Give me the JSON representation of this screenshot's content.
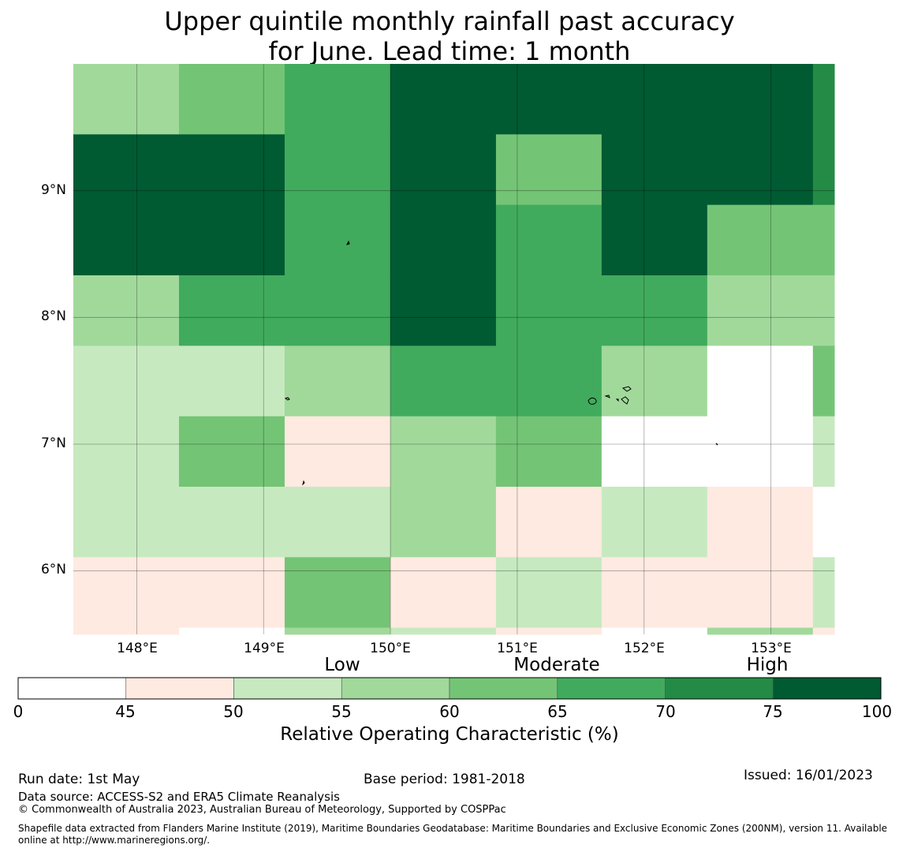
{
  "title": {
    "line1": "Upper quintile monthly rainfall past accuracy",
    "line2": "for June. Lead time: 1 month"
  },
  "map": {
    "lon_range": [
      147.5,
      153.5
    ],
    "lat_range": [
      5.5,
      10.0
    ],
    "grid_lon_step": 0.833,
    "grid_lat_step": 0.556,
    "lat_ticks": [
      {
        "value": 9,
        "label": "9°N"
      },
      {
        "value": 8,
        "label": "8°N"
      },
      {
        "value": 7,
        "label": "7°N"
      },
      {
        "value": 6,
        "label": "6°N"
      }
    ],
    "lon_ticks": [
      {
        "value": 148,
        "label": "148°E"
      },
      {
        "value": 149,
        "label": "149°E"
      },
      {
        "value": 150,
        "label": "150°E"
      },
      {
        "value": 151,
        "label": "151°E"
      },
      {
        "value": 152,
        "label": "152°E"
      },
      {
        "value": 153,
        "label": "153°E"
      }
    ],
    "cells": [
      [
        3,
        4,
        5,
        7,
        7,
        7,
        7,
        6
      ],
      [
        7,
        7,
        5,
        7,
        4,
        7,
        7,
        6
      ],
      [
        7,
        7,
        5,
        7,
        5,
        7,
        4,
        4
      ],
      [
        3,
        5,
        5,
        7,
        5,
        5,
        3,
        3
      ],
      [
        2,
        2,
        3,
        5,
        5,
        3,
        0,
        4
      ],
      [
        2,
        4,
        1,
        3,
        4,
        0,
        0,
        2
      ],
      [
        2,
        2,
        2,
        3,
        1,
        2,
        1,
        0
      ],
      [
        1,
        1,
        4,
        1,
        2,
        1,
        1,
        2
      ],
      [
        1,
        0,
        3,
        2,
        1,
        0,
        3,
        1
      ]
    ]
  },
  "categories": {
    "low": "Low",
    "moderate": "Moderate",
    "high": "High"
  },
  "colorbar": {
    "colors": [
      "#ffffff",
      "#feeae1",
      "#c7e9c0",
      "#a1d99b",
      "#74c476",
      "#41ab5d",
      "#238b45",
      "#005a32"
    ],
    "ticks": [
      "0",
      "45",
      "50",
      "55",
      "60",
      "65",
      "70",
      "75",
      "100"
    ],
    "label": "Relative Operating Characteristic (%)"
  },
  "footer": {
    "run_date": "Run date: 1st May",
    "base_period": "Base period: 1981-2018",
    "issued": "Issued: 16/01/2023",
    "data_source": "Data source: ACCESS-S2 and ERA5 Climate Reanalysis",
    "copyright": "© Commonwealth of Australia 2023, Australian Bureau of Meteorology, Supported by COSPPac",
    "shapefile_line1": "Shapefile data extracted from Flanders Marine Institute (2019), Maritime Boundaries Geodatabase: Maritime Boundaries and Exclusive Economic Zones (200NM), version 11. Available",
    "shapefile_line2": "online at http://www.marineregions.org/."
  }
}
